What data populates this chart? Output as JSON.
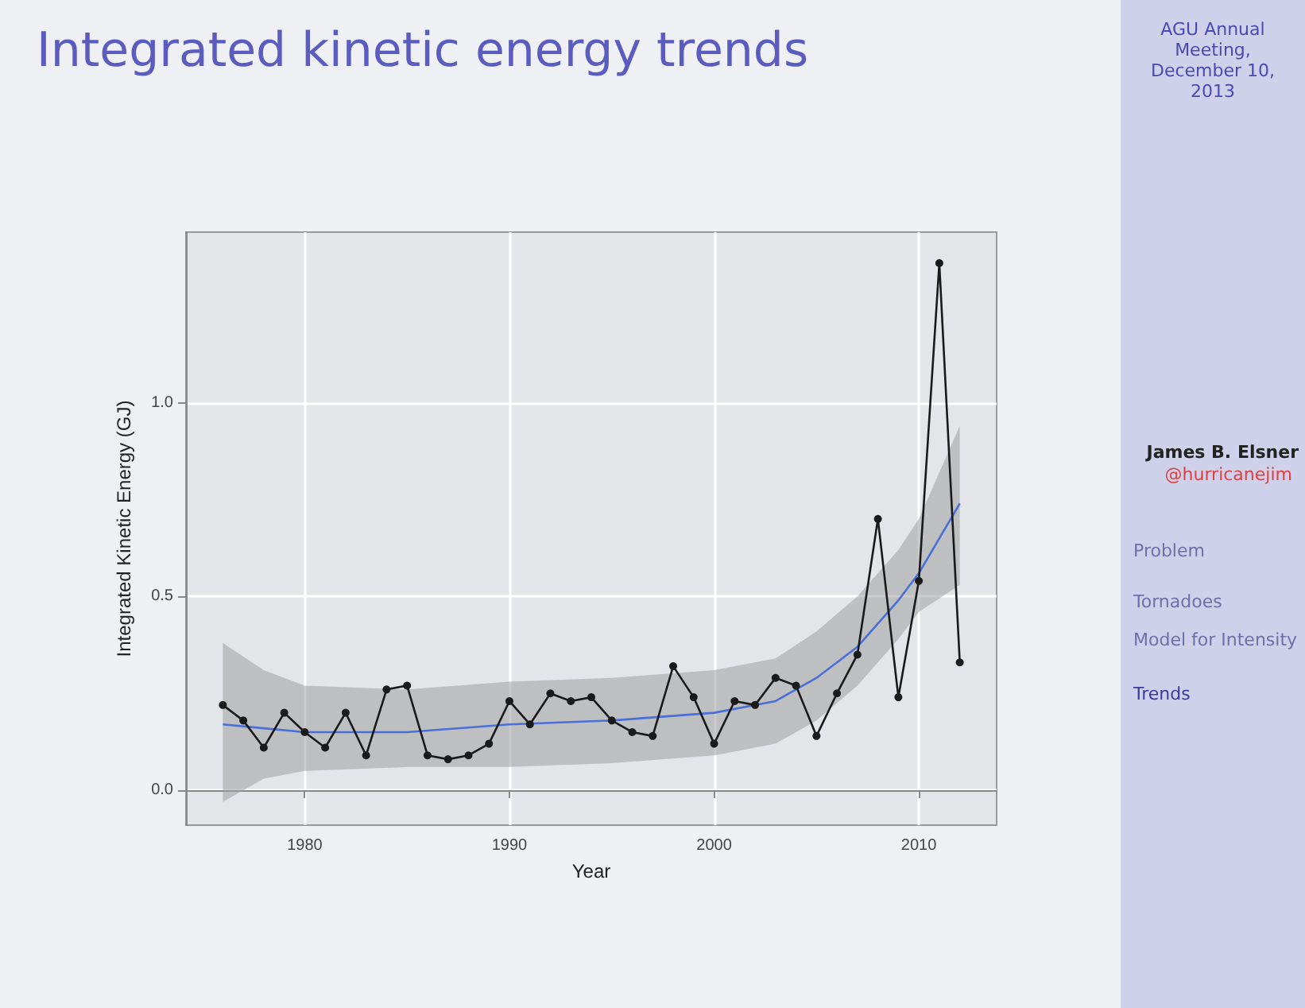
{
  "chart_data": {
    "type": "line",
    "title": "Integrated kinetic energy trends",
    "xlabel": "Year",
    "ylabel": "Integrated Kinetic Energy (GJ)",
    "annotations": [
      "AGU Annual Meeting, December 10, 2013",
      "James B. Elsner",
      "@hurricanejim",
      "Problem",
      "Tornadoes",
      "Model for Intensity",
      "Trends"
    ],
    "xlim": [
      1974.2,
      2013.8
    ],
    "xticks": [
      1980,
      1990,
      2000,
      2010
    ],
    "ylim": [
      -0.09,
      1.44
    ],
    "yticks": [
      {
        "value": 0,
        "label": "0.0"
      },
      {
        "value": 0.5,
        "label": "0.5"
      },
      {
        "value": 1,
        "label": "1.0"
      }
    ],
    "grid": true,
    "series": [
      {
        "color": "#4a6fd8",
        "marker": "none",
        "x": [
          1976,
          1978,
          1980,
          1985,
          1990,
          1995,
          2000,
          2003,
          2005,
          2007,
          2009,
          2010,
          2012
        ],
        "values": [
          0.17,
          0.16,
          0.15,
          0.15,
          0.17,
          0.18,
          0.2,
          0.23,
          0.29,
          0.37,
          0.49,
          0.56,
          0.74
        ],
        "lower": [
          -0.03,
          0.03,
          0.05,
          0.06,
          0.06,
          0.07,
          0.09,
          0.12,
          0.18,
          0.27,
          0.39,
          0.46,
          0.53
        ],
        "upper": [
          0.38,
          0.31,
          0.27,
          0.26,
          0.28,
          0.29,
          0.31,
          0.34,
          0.41,
          0.5,
          0.62,
          0.7,
          0.94
        ]
      },
      {
        "color": "#1a1a1a",
        "marker": "circle",
        "x": [
          1976,
          1977,
          1978,
          1979,
          1980,
          1981,
          1982,
          1983,
          1984,
          1985,
          1986,
          1987,
          1988,
          1989,
          1990,
          1991,
          1992,
          1993,
          1994,
          1995,
          1996,
          1997,
          1998,
          1999,
          2000,
          2001,
          2002,
          2003,
          2004,
          2005,
          2006,
          2007,
          2008,
          2009,
          2010,
          2011,
          2012
        ],
        "values": [
          0.22,
          0.18,
          0.11,
          0.2,
          0.15,
          0.11,
          0.2,
          0.09,
          0.26,
          0.27,
          0.09,
          0.08,
          0.09,
          0.12,
          0.23,
          0.17,
          0.25,
          0.23,
          0.24,
          0.18,
          0.15,
          0.14,
          0.32,
          0.24,
          0.12,
          0.23,
          0.22,
          0.29,
          0.27,
          0.14,
          0.25,
          0.35,
          0.7,
          0.24,
          0.54,
          1.36,
          0.33
        ]
      }
    ]
  }
}
